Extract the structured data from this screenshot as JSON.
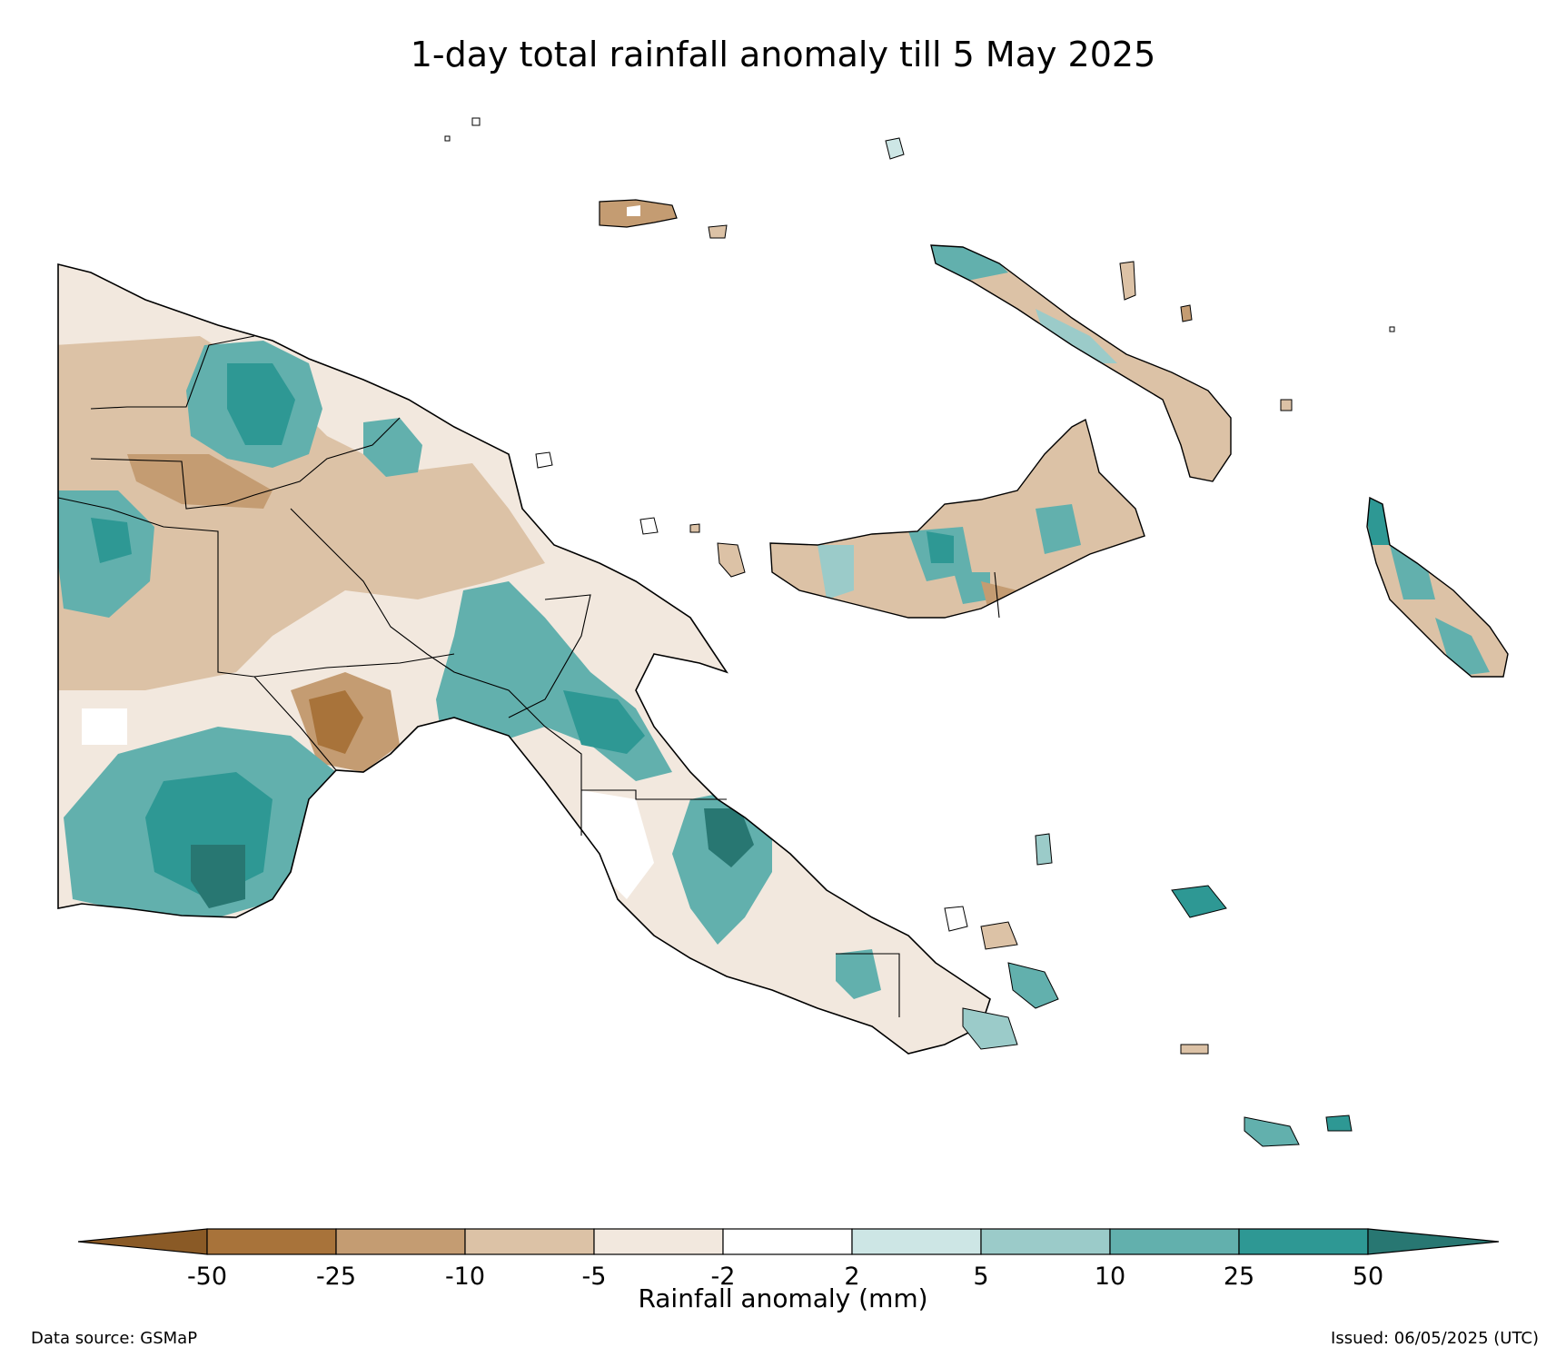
{
  "title": "1-day total rainfall anomaly till 5 May 2025",
  "colorbar": {
    "label": "Rainfall anomaly (mm)",
    "ticks": [
      "-50",
      "-25",
      "-10",
      "-5",
      "-2",
      "2",
      "5",
      "10",
      "25",
      "50"
    ],
    "colors": [
      "#8a5a26",
      "#a8733a",
      "#c49c72",
      "#dcc2a6",
      "#f2e8de",
      "#ffffff",
      "#cde6e5",
      "#9bcbc9",
      "#62b0ad",
      "#2e9894",
      "#287772"
    ],
    "extend": "both"
  },
  "footer": {
    "source": "Data source: GSMaP",
    "issued": "Issued: 06/05/2025 (UTC)"
  },
  "colors": {
    "coast": "#000000",
    "dry_strong": "#a8733a",
    "dry": "#dcc2a6",
    "wet": "#62b0ad",
    "wet_strong": "#287772"
  }
}
